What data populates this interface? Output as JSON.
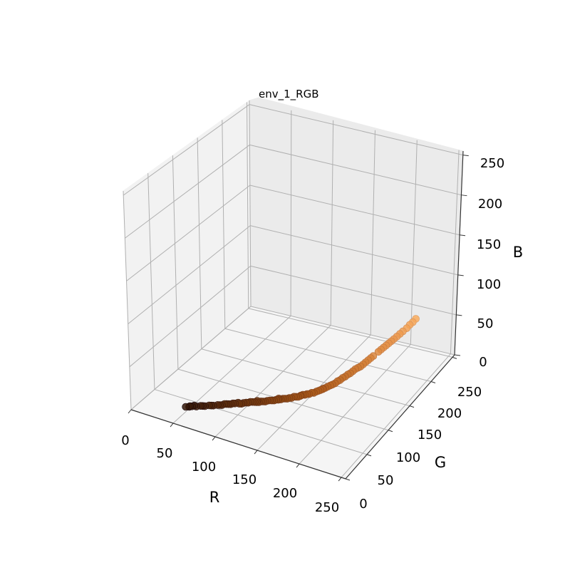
{
  "chart_data": {
    "type": "scatter",
    "title": "env_1_RGB",
    "xlabel": "R",
    "ylabel": "G",
    "zlabel": "B",
    "xlim": [
      0,
      255
    ],
    "ylim": [
      0,
      255
    ],
    "zlim": [
      0,
      255
    ],
    "xticks": [
      "0",
      "50",
      "100",
      "150",
      "200",
      "250"
    ],
    "yticks": [
      "0",
      "50",
      "100",
      "150",
      "200",
      "250"
    ],
    "zticks": [
      "0",
      "50",
      "100",
      "150",
      "200",
      "250"
    ],
    "grid": true,
    "series": [
      {
        "color_by_value": true,
        "points": [
          [
            52,
            24,
            8
          ],
          [
            55,
            26,
            8
          ],
          [
            58,
            27,
            9
          ],
          [
            62,
            29,
            9
          ],
          [
            66,
            31,
            10
          ],
          [
            70,
            33,
            10
          ],
          [
            74,
            35,
            11
          ],
          [
            78,
            37,
            11
          ],
          [
            82,
            39,
            12
          ],
          [
            86,
            41,
            12
          ],
          [
            90,
            44,
            13
          ],
          [
            94,
            46,
            13
          ],
          [
            98,
            48,
            14
          ],
          [
            102,
            50,
            14
          ],
          [
            106,
            52,
            15
          ],
          [
            110,
            55,
            15
          ],
          [
            114,
            57,
            16
          ],
          [
            118,
            59,
            16
          ],
          [
            122,
            61,
            17
          ],
          [
            126,
            63,
            17
          ],
          [
            130,
            66,
            18
          ],
          [
            134,
            68,
            18
          ],
          [
            138,
            70,
            19
          ],
          [
            142,
            73,
            20
          ],
          [
            146,
            75,
            20
          ],
          [
            150,
            77,
            21
          ],
          [
            154,
            80,
            22
          ],
          [
            158,
            82,
            23
          ],
          [
            162,
            85,
            24
          ],
          [
            166,
            87,
            25
          ],
          [
            170,
            90,
            26
          ],
          [
            174,
            93,
            28
          ],
          [
            178,
            96,
            30
          ],
          [
            182,
            99,
            32
          ],
          [
            186,
            102,
            34
          ],
          [
            190,
            106,
            37
          ],
          [
            194,
            110,
            40
          ],
          [
            198,
            114,
            43
          ],
          [
            202,
            118,
            46
          ],
          [
            206,
            122,
            49
          ],
          [
            210,
            126,
            52
          ],
          [
            214,
            130,
            56
          ],
          [
            218,
            134,
            60
          ],
          [
            222,
            138,
            64
          ],
          [
            226,
            142,
            68
          ],
          [
            230,
            146,
            72
          ],
          [
            234,
            150,
            76
          ],
          [
            236,
            153,
            78
          ],
          [
            238,
            156,
            80
          ],
          [
            240,
            159,
            82
          ],
          [
            243,
            162,
            85
          ],
          [
            245,
            165,
            88
          ],
          [
            247,
            168,
            90
          ],
          [
            249,
            171,
            93
          ],
          [
            60,
            28,
            10
          ],
          [
            68,
            32,
            10
          ],
          [
            84,
            40,
            12
          ],
          [
            96,
            47,
            14
          ],
          [
            108,
            54,
            15
          ],
          [
            120,
            60,
            16
          ],
          [
            132,
            67,
            18
          ],
          [
            144,
            74,
            20
          ],
          [
            156,
            81,
            22
          ],
          [
            168,
            89,
            26
          ],
          [
            180,
            97,
            31
          ],
          [
            192,
            108,
            38
          ],
          [
            204,
            120,
            48
          ],
          [
            216,
            132,
            58
          ],
          [
            228,
            144,
            70
          ],
          [
            100,
            51,
            14
          ],
          [
            112,
            56,
            16
          ],
          [
            124,
            62,
            17
          ],
          [
            136,
            69,
            19
          ],
          [
            148,
            76,
            21
          ],
          [
            160,
            84,
            24
          ],
          [
            172,
            92,
            27
          ],
          [
            184,
            101,
            33
          ],
          [
            196,
            112,
            41
          ],
          [
            208,
            124,
            50
          ],
          [
            56,
            26,
            9
          ],
          [
            76,
            36,
            11
          ],
          [
            88,
            43,
            13
          ],
          [
            104,
            51,
            14
          ],
          [
            116,
            58,
            16
          ],
          [
            128,
            64,
            18
          ],
          [
            140,
            72,
            19
          ],
          [
            152,
            79,
            22
          ],
          [
            164,
            86,
            25
          ],
          [
            176,
            94,
            29
          ],
          [
            188,
            104,
            35
          ],
          [
            200,
            116,
            44
          ],
          [
            212,
            128,
            54
          ],
          [
            224,
            140,
            66
          ],
          [
            232,
            148,
            74
          ],
          [
            92,
            45,
            13
          ],
          [
            118,
            60,
            17
          ],
          [
            138,
            71,
            20
          ],
          [
            158,
            83,
            23
          ],
          [
            178,
            95,
            30
          ]
        ]
      }
    ]
  }
}
